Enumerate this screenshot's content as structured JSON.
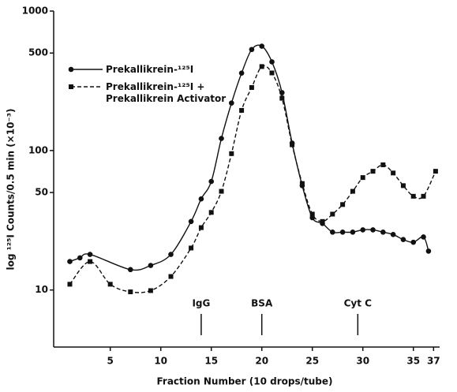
{
  "chart_data": {
    "type": "line",
    "xlabel": "Fraction Number (10 drops/tube)",
    "ylabel": "log ¹²⁵I Counts/0.5 min (×10⁻³)",
    "log_y": true,
    "xlim": [
      -0.6,
      37.6
    ],
    "ylim": [
      3.9,
      1000
    ],
    "xticks": [
      5,
      10,
      15,
      20,
      25,
      30,
      35,
      37
    ],
    "yticks": [
      10,
      50,
      100,
      500,
      1000
    ],
    "series": [
      {
        "name": "Prekallikrein-¹²⁵I",
        "color": "#111",
        "marker": "circle",
        "dashed": false,
        "x": [
          1,
          2,
          3,
          7,
          9,
          11,
          13,
          14,
          15,
          16,
          17,
          18,
          19,
          20,
          21,
          22,
          23,
          24,
          25,
          26,
          27,
          28,
          29,
          30,
          31,
          32,
          33,
          34,
          35,
          36,
          36.5
        ],
        "values": [
          16,
          17,
          18,
          14,
          15,
          18,
          31,
          45,
          60,
          122,
          219,
          359,
          530,
          560,
          432,
          260,
          113,
          56,
          33,
          30,
          26,
          26,
          26,
          27,
          27,
          26,
          25,
          23,
          22,
          24,
          19
        ]
      },
      {
        "name": "Prekallikrein-¹²⁵I +\nPrekallikrein Activator",
        "color": "#111",
        "marker": "square",
        "dashed": true,
        "x": [
          1,
          3,
          5,
          7,
          9,
          11,
          13,
          14,
          15,
          16,
          17,
          18,
          19,
          20,
          21,
          22,
          23,
          24,
          25,
          26,
          27,
          28,
          29,
          30,
          31,
          32,
          33,
          34,
          35,
          36,
          37.2
        ],
        "values": [
          11,
          16,
          11,
          9.7,
          9.9,
          12.5,
          20,
          28,
          36,
          51,
          95,
          194,
          283,
          400,
          360,
          237,
          110,
          58,
          35,
          31,
          35,
          41,
          51,
          64,
          71,
          79,
          69,
          56,
          47,
          47,
          71
        ]
      }
    ],
    "annotations": [
      {
        "text": "IgG",
        "x": 14
      },
      {
        "text": "BSA",
        "x": 20
      },
      {
        "text": "Cyt C",
        "x": 29.5
      }
    ]
  }
}
